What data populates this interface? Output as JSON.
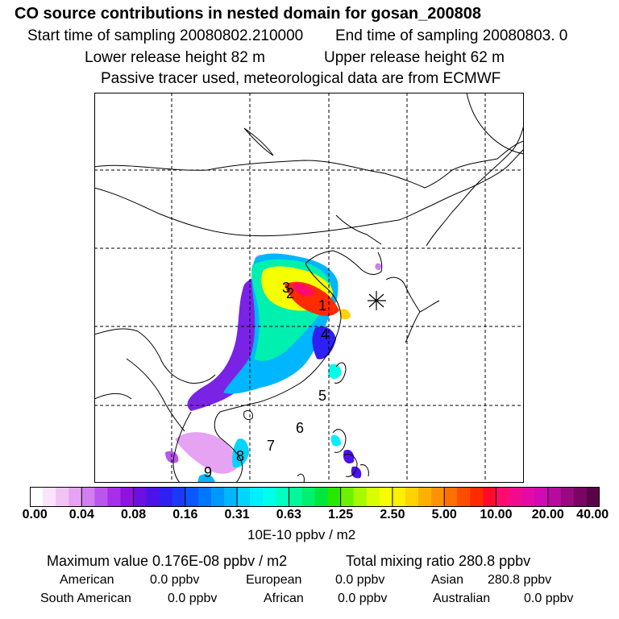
{
  "header": {
    "title": "CO  source contributions in nested domain for gosan_200808",
    "start_time": "Start time of sampling 20080802.210000",
    "end_time": "End time of sampling 20080803.     0",
    "lower_height": "Lower release height   82 m",
    "upper_height": "Upper release height   62 m",
    "note": "Passive tracer used, meteorological data are from ECMWF"
  },
  "map": {
    "region_labels": [
      "1",
      "2",
      "3",
      "4",
      "5",
      "6",
      "7",
      "8",
      "9"
    ],
    "receptor_marker": "asterisk-icon",
    "colors": {
      "land": "#ffffff",
      "coast": "#000000",
      "grid": "#000000"
    }
  },
  "colorbar": {
    "ticks": [
      "0.00",
      "0.04",
      "0.08",
      "0.16",
      "0.31",
      "0.63",
      "1.25",
      "2.50",
      "5.00",
      "10.00",
      "20.00",
      "40.00"
    ],
    "units": "10E-10 ppbv / m2",
    "colors": [
      "#ffffff",
      "#fbe3fb",
      "#f2c4f6",
      "#e6a3f4",
      "#d17ef0",
      "#bb55ee",
      "#a82ee8",
      "#8f13e0",
      "#6b10e0",
      "#4c12ea",
      "#2e20f2",
      "#1a3af8",
      "#0b57ff",
      "#0077ff",
      "#0097ff",
      "#00b6ff",
      "#00d4ff",
      "#00f0ff",
      "#00ffe8",
      "#00ffc0",
      "#00f898",
      "#00f070",
      "#00e63c",
      "#28e800",
      "#6cf200",
      "#a8f800",
      "#d8ff00",
      "#f6ff00",
      "#fff000",
      "#ffd200",
      "#ffb000",
      "#ff9200",
      "#ff7000",
      "#ff4c00",
      "#ff2a00",
      "#ff0a2a",
      "#ff0b6e",
      "#f20a8e",
      "#e40aa6",
      "#d00ab4",
      "#b80a9e",
      "#98087e",
      "#780662",
      "#5a0448"
    ]
  },
  "summary": {
    "max_value": "Maximum value  0.176E-08 ppbv / m2",
    "total_mixing": "Total mixing ratio     280.8 ppbv",
    "rows": [
      [
        {
          "label": "American",
          "value": "0.0 ppbv"
        },
        {
          "label": "European",
          "value": "0.0 ppbv"
        },
        {
          "label": "Asian",
          "value": "280.8 ppbv"
        }
      ],
      [
        {
          "label": "South American",
          "value": "0.0 ppbv"
        },
        {
          "label": "African",
          "value": "0.0 ppbv"
        },
        {
          "label": "Australian",
          "value": "0.0 ppbv"
        }
      ]
    ]
  }
}
